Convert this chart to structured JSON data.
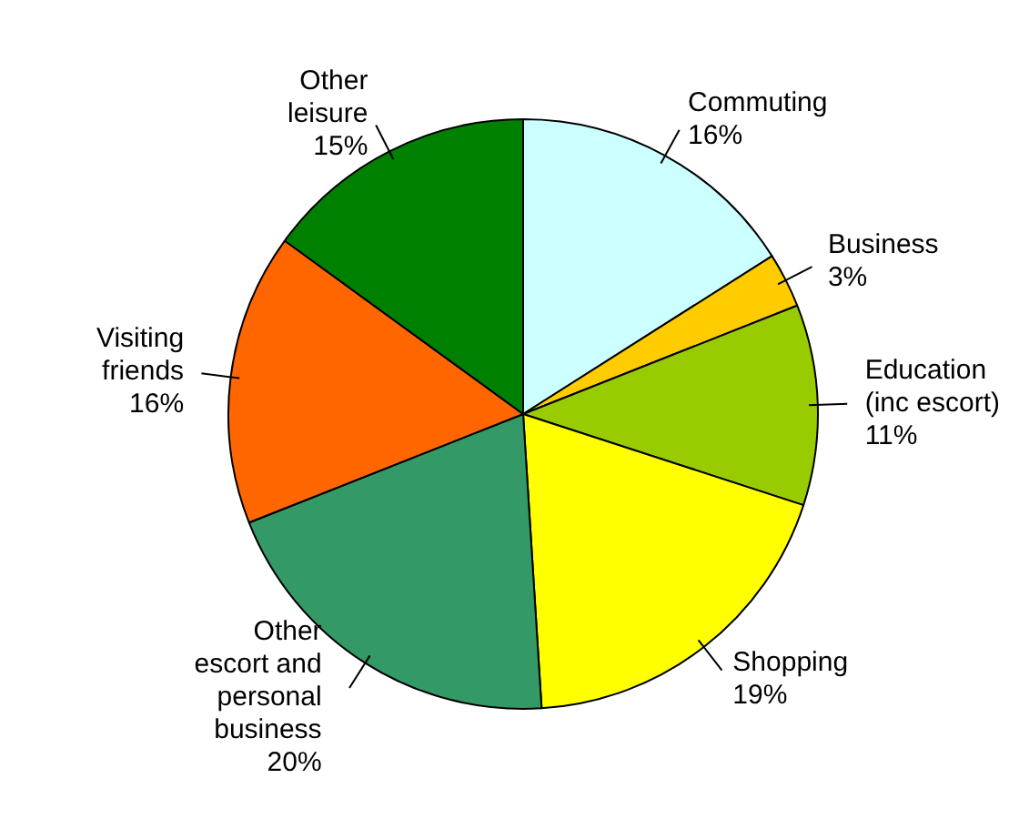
{
  "chart_data": {
    "type": "pie",
    "categories": [
      "Commuting",
      "Business",
      "Education (inc escort)",
      "Shopping",
      "Other escort and personal business",
      "Visiting friends",
      "Other leisure"
    ],
    "values": [
      16,
      3,
      11,
      19,
      20,
      16,
      15
    ],
    "colors": [
      "#ccffff",
      "#ffcc00",
      "#99cc00",
      "#ffff00",
      "#339966",
      "#ff6600",
      "#008000"
    ],
    "value_labels": [
      "16%",
      "3%",
      "11%",
      "19%",
      "20%",
      "16%",
      "15%"
    ],
    "legend": false
  }
}
